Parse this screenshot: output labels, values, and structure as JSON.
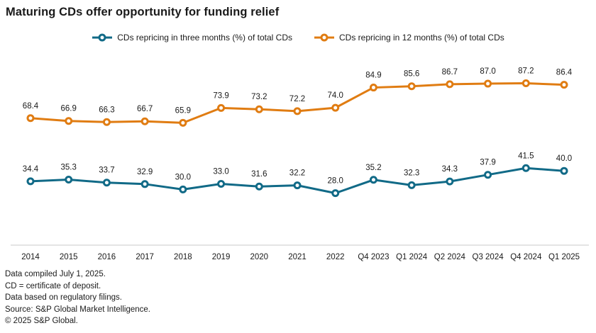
{
  "title": "Maturing CDs offer opportunity for funding relief",
  "colors": {
    "teal": "#116A87",
    "orange": "#E07C12",
    "text": "#1a1a1a",
    "axis_line": "#c9c9c9",
    "background": "#ffffff"
  },
  "legend": [
    {
      "label": "CDs repricing in three months (%) of total CDs",
      "color": "#116A87"
    },
    {
      "label": "CDs repricing in 12 months (%) of total CDs",
      "color": "#E07C12"
    }
  ],
  "chart_data": {
    "type": "line",
    "categories": [
      "2014",
      "2015",
      "2016",
      "2017",
      "2018",
      "2019",
      "2020",
      "2021",
      "2022",
      "Q4 2023",
      "Q1 2024",
      "Q2 2024",
      "Q3 2024",
      "Q4 2024",
      "Q1 2025"
    ],
    "series": [
      {
        "name": "CDs repricing in three months (%) of total CDs",
        "color": "#116A87",
        "values": [
          34.4,
          35.3,
          33.7,
          32.9,
          30.0,
          33.0,
          31.6,
          32.2,
          28.0,
          35.2,
          32.3,
          34.3,
          37.9,
          41.5,
          40.0
        ]
      },
      {
        "name": "CDs repricing in 12 months (%) of total CDs",
        "color": "#E07C12",
        "values": [
          68.4,
          66.9,
          66.3,
          66.7,
          65.9,
          73.9,
          73.2,
          72.2,
          74.0,
          84.9,
          85.6,
          86.7,
          87.0,
          87.2,
          86.4
        ]
      }
    ],
    "title": "Maturing CDs offer opportunity for funding relief",
    "xlabel": "",
    "ylabel": "",
    "ylim": [
      0,
      100
    ],
    "grid": false,
    "legend_position": "top",
    "data_labels": true,
    "marker": "open-circle"
  },
  "footnotes": [
    "Data compiled July 1, 2025.",
    "CD = certificate of deposit.",
    "Data based on regulatory filings.",
    "Source: S&P Global Market Intelligence.",
    "© 2025 S&P Global."
  ]
}
